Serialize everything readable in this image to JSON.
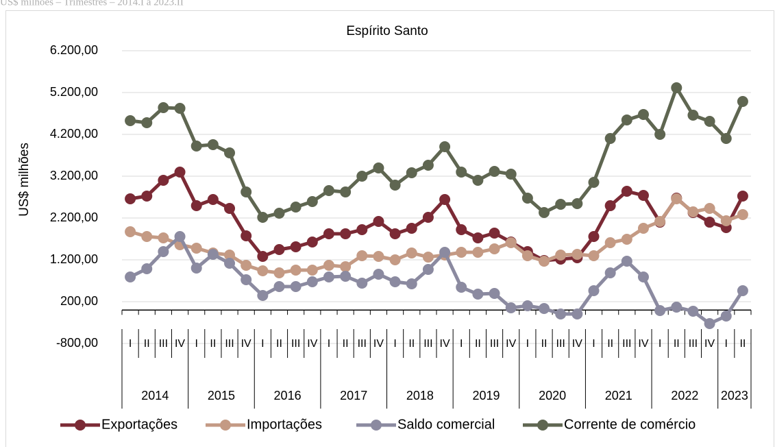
{
  "chart_data": {
    "type": "line",
    "header": "US$ milhões – Trimestres – 2014.I a 2023.II",
    "title": "Espírito Santo",
    "y_label": "US$ milhões",
    "categories": [
      "I",
      "II",
      "III",
      "IV",
      "I",
      "II",
      "III",
      "IV",
      "I",
      "II",
      "III",
      "IV",
      "I",
      "II",
      "III",
      "IV",
      "I",
      "II",
      "III",
      "IV",
      "I",
      "II",
      "III",
      "IV",
      "I",
      "II",
      "III",
      "IV",
      "I",
      "II",
      "III",
      "IV",
      "I",
      "II",
      "III",
      "IV",
      "I",
      "II"
    ],
    "groups": [
      "2014",
      "2015",
      "2016",
      "2017",
      "2018",
      "2019",
      "2020",
      "2021",
      "2022",
      "2023"
    ],
    "ylim": [
      -800,
      6200
    ],
    "yticks": [
      {
        "value": -800,
        "label": "-800,00"
      },
      {
        "value": 200,
        "label": "200,00"
      },
      {
        "value": 1200,
        "label": "1.200,00"
      },
      {
        "value": 2200,
        "label": "2.200,00"
      },
      {
        "value": 3200,
        "label": "3.200,00"
      },
      {
        "value": 4200,
        "label": "4.200,00"
      },
      {
        "value": 5200,
        "label": "5.200,00"
      },
      {
        "value": 6200,
        "label": "6.200,00"
      }
    ],
    "grid": true,
    "legend": "bottom",
    "series": [
      {
        "name": "Exportações",
        "color": "#7b2a35",
        "values": [
          2659,
          2725,
          3102,
          3298,
          2495,
          2643,
          2430,
          1774,
          1282,
          1446,
          1511,
          1626,
          1823,
          1823,
          1921,
          2118,
          1823,
          1954,
          2216,
          2643,
          1921,
          1725,
          1839,
          1626,
          1397,
          1184,
          1216,
          1249,
          1757,
          2495,
          2839,
          2741,
          2101,
          2675,
          2331,
          2101,
          1970,
          2725
        ]
      },
      {
        "name": "Importações",
        "color": "#c49a84",
        "values": [
          1872,
          1757,
          1725,
          1561,
          1479,
          1364,
          1315,
          1069,
          938,
          889,
          954,
          954,
          1069,
          1036,
          1298,
          1282,
          1200,
          1364,
          1266,
          1315,
          1380,
          1380,
          1462,
          1610,
          1298,
          1167,
          1315,
          1331,
          1298,
          1610,
          1692,
          1954,
          2118,
          2659,
          2348,
          2430,
          2134,
          2282
        ]
      },
      {
        "name": "Saldo comercial",
        "color": "#8b8aa0",
        "values": [
          790,
          987,
          1397,
          1757,
          1003,
          1331,
          1118,
          725,
          348,
          561,
          561,
          675,
          790,
          807,
          643,
          856,
          675,
          626,
          970,
          1380,
          544,
          380,
          397,
          52,
          102,
          36,
          -95,
          -95,
          462,
          889,
          1167,
          790,
          -13,
          69,
          -29,
          -325,
          -144,
          462
        ]
      },
      {
        "name": "Corrente de comércio",
        "color": "#5f6651",
        "values": [
          4528,
          4479,
          4839,
          4823,
          3921,
          3954,
          3757,
          2823,
          2216,
          2315,
          2462,
          2593,
          2856,
          2823,
          3200,
          3397,
          2987,
          3282,
          3462,
          3905,
          3298,
          3102,
          3315,
          3249,
          2675,
          2331,
          2528,
          2544,
          3052,
          4102,
          4544,
          4675,
          4200,
          5315,
          4659,
          4511,
          4102,
          4987
        ]
      }
    ]
  }
}
